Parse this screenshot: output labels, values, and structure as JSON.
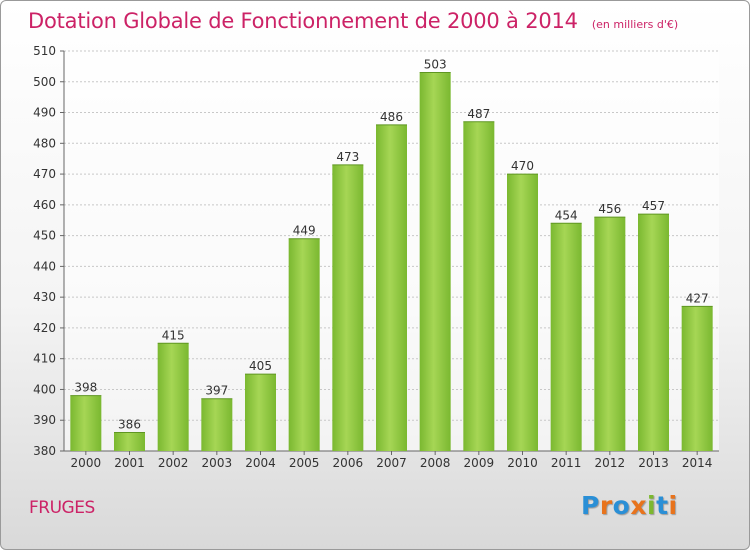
{
  "title": "Dotation Globale de Fonctionnement de 2000 à 2014",
  "unit_note": "(en milliers d'€)",
  "place": "FRUGES",
  "logo": {
    "text": "Proxiti",
    "letters": [
      {
        "ch": "P",
        "color": "#2a8fd6"
      },
      {
        "ch": "r",
        "color": "#e8731c"
      },
      {
        "ch": "o",
        "color": "#2a8fd6"
      },
      {
        "ch": "x",
        "color": "#e8731c"
      },
      {
        "ch": "i",
        "color": "#7cb82f"
      },
      {
        "ch": "t",
        "color": "#2a8fd6"
      },
      {
        "ch": "i",
        "color": "#e8731c"
      }
    ]
  },
  "chart_data": {
    "type": "bar",
    "categories": [
      "2000",
      "2001",
      "2002",
      "2003",
      "2004",
      "2005",
      "2006",
      "2007",
      "2008",
      "2009",
      "2010",
      "2011",
      "2012",
      "2013",
      "2014"
    ],
    "values": [
      398,
      386,
      415,
      397,
      405,
      449,
      473,
      486,
      503,
      487,
      470,
      454,
      456,
      457,
      427
    ],
    "ylim": [
      380,
      510
    ],
    "yticks": [
      380,
      390,
      400,
      410,
      420,
      430,
      440,
      450,
      460,
      470,
      480,
      490,
      500,
      510
    ],
    "grid": true,
    "bar_color": "#7ab830",
    "bar_color_light": "#a6d655"
  }
}
